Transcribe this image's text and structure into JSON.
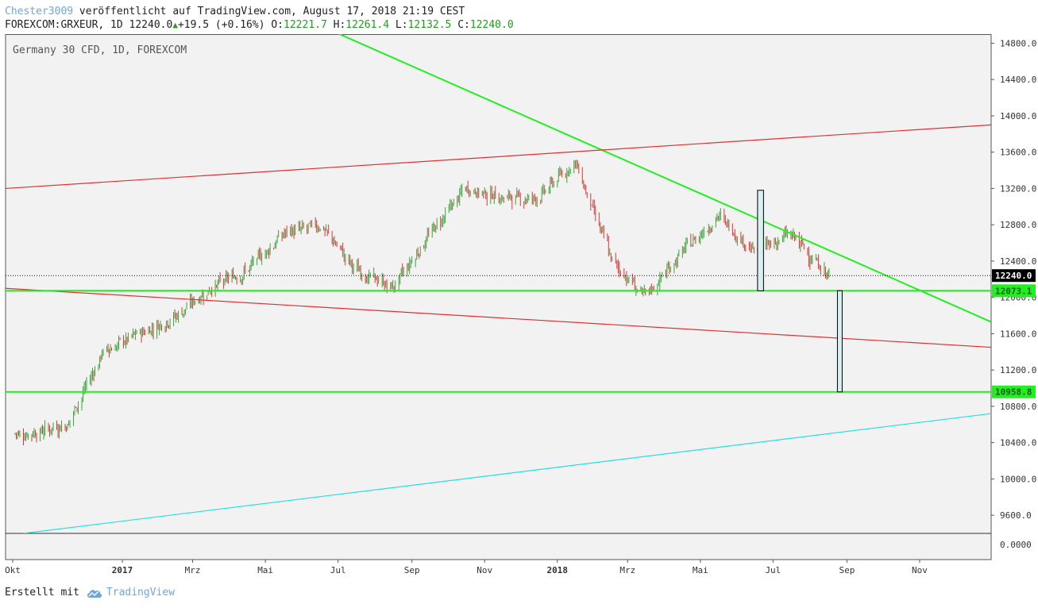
{
  "header": {
    "author": "Chester3009",
    "published_text": "veröffentlicht auf TradingView.com, August 17, 2018 21:19 CEST",
    "symbol_line": "FOREXCOM:GRXEUR, 1D 12240.0",
    "change": "+19.5 (+0.16%)",
    "o_label": "O:",
    "o_value": "12221.7",
    "h_label": "H:",
    "h_value": "12261.4",
    "l_label": "L:",
    "l_value": "12132.5",
    "c_label": "C:",
    "c_value": "12240.0"
  },
  "footer": {
    "created_with": "Erstellt mit",
    "brand": "TradingView"
  },
  "colors": {
    "background": "#f2f2f2",
    "bull": "#3aa33a",
    "bear": "#d23a3a",
    "green_line": "#22ee22",
    "red_line": "#e03030",
    "cyan_line": "#22e0e0",
    "box_fill": "#d6f0f0"
  },
  "chart_data": {
    "type": "candlestick",
    "title": "Germany 30 CFD, 1D, FOREXCOM",
    "ylim": [
      9400,
      14900
    ],
    "y_ticks": [
      "14800.0",
      "14400.0",
      "14000.0",
      "13600.0",
      "13200.0",
      "12800.0",
      "12400.0",
      "12000.0",
      "11600.0",
      "11200.0",
      "10800.0",
      "10400.0",
      "10000.0",
      "9600.0"
    ],
    "volume_tick": "0.0000",
    "x_ticks": [
      "Okt",
      "2017",
      "Mrz",
      "Mai",
      "Jul",
      "Sep",
      "Nov",
      "2018",
      "Mrz",
      "Mai",
      "Jul",
      "Sep",
      "Nov"
    ],
    "x_ticks_bold": [
      "2017",
      "2018"
    ],
    "last_price": {
      "value": 12240.0,
      "label": "12240.0"
    },
    "level_labels": [
      {
        "value": 12073.1,
        "label": "12073.1"
      },
      {
        "value": 10958.8,
        "label": "10958.8"
      }
    ],
    "series": [
      {
        "date": "2016-10",
        "close": 10500
      },
      {
        "date": "2016-11",
        "close": 10600
      },
      {
        "date": "2016-12",
        "close": 11400
      },
      {
        "date": "2017-01",
        "close": 11600
      },
      {
        "date": "2017-02",
        "close": 11800
      },
      {
        "date": "2017-03",
        "close": 12100
      },
      {
        "date": "2017-04",
        "close": 12300
      },
      {
        "date": "2017-05",
        "close": 12700
      },
      {
        "date": "2017-06",
        "close": 12800
      },
      {
        "date": "2017-07",
        "close": 12300
      },
      {
        "date": "2017-08",
        "close": 12100
      },
      {
        "date": "2017-09",
        "close": 12700
      },
      {
        "date": "2017-10",
        "close": 13200
      },
      {
        "date": "2017-11",
        "close": 13100
      },
      {
        "date": "2017-12",
        "close": 13100
      },
      {
        "date": "2018-01",
        "close": 13500
      },
      {
        "date": "2018-02",
        "close": 12400
      },
      {
        "date": "2018-03",
        "close": 12000
      },
      {
        "date": "2018-04",
        "close": 12500
      },
      {
        "date": "2018-05",
        "close": 12900
      },
      {
        "date": "2018-06",
        "close": 12500
      },
      {
        "date": "2018-07",
        "close": 12700
      },
      {
        "date": "2018-08",
        "close": 12240
      }
    ],
    "trendlines": [
      {
        "name": "green-down",
        "color": "green",
        "from": [
          "2017-06-15",
          15000
        ],
        "to": [
          "2018-12-31",
          11730
        ]
      },
      {
        "name": "red-upper",
        "color": "red",
        "from": [
          "2016-09-25",
          13200
        ],
        "to": [
          "2018-12-31",
          13900
        ]
      },
      {
        "name": "red-lower",
        "color": "red",
        "from": [
          "2016-09-25",
          12100
        ],
        "to": [
          "2018-12-31",
          11450
        ]
      },
      {
        "name": "cyan",
        "color": "cyan",
        "from": [
          "2016-10-10",
          9400
        ],
        "to": [
          "2018-12-31",
          10720
        ]
      },
      {
        "name": "green-h-upper",
        "color": "green",
        "from": [
          "2016-09-25",
          12073.1
        ],
        "to": [
          "2018-12-31",
          12073.1
        ]
      },
      {
        "name": "green-h-lower",
        "color": "green",
        "from": [
          "2016-09-25",
          10958.8
        ],
        "to": [
          "2018-12-31",
          10958.8
        ]
      }
    ],
    "boxes": [
      {
        "from": [
          "2018-06-18",
          12073
        ],
        "to": [
          "2018-06-23",
          13180
        ]
      },
      {
        "from": [
          "2018-08-24",
          10958.8
        ],
        "to": [
          "2018-08-28",
          12073.1
        ]
      }
    ]
  }
}
